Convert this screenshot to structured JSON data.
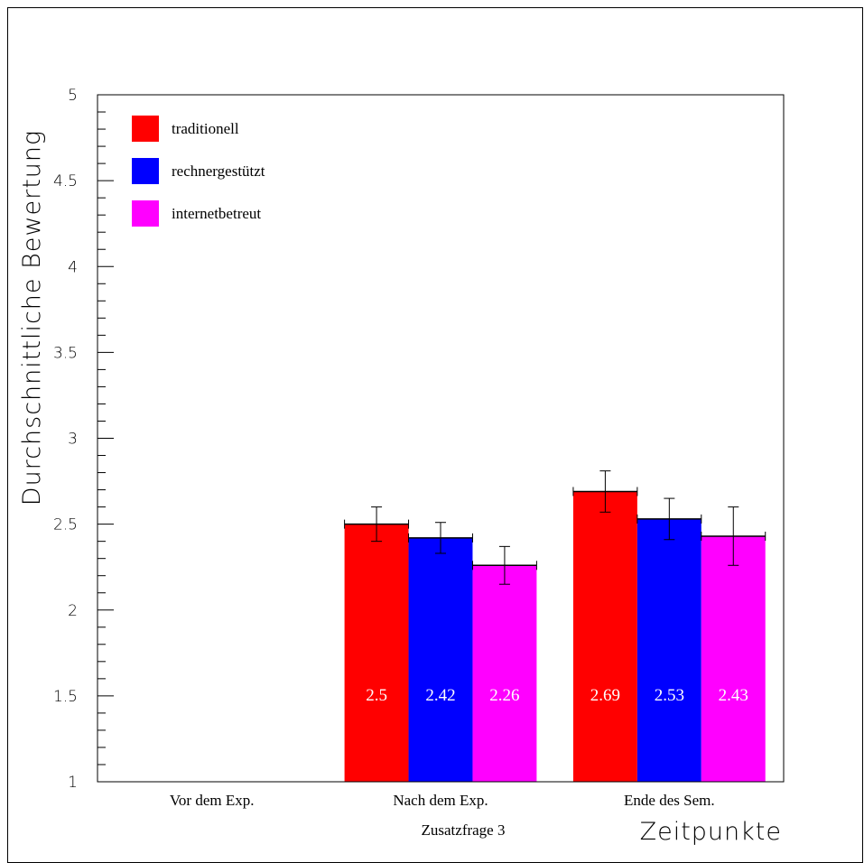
{
  "chart_data": {
    "type": "bar",
    "title": "",
    "subtitle": "Zusatzfrage 3",
    "xlabel": "Zeitpunkte",
    "ylabel": "Durchschnittliche Bewertung",
    "ylim": [
      1,
      5
    ],
    "yticks": [
      "1",
      "1.5",
      "2",
      "2.5",
      "3",
      "3.5",
      "4",
      "4.5",
      "5"
    ],
    "grid": false,
    "legend_position": "top-left",
    "categories": [
      "Vor dem Exp.",
      "Nach dem Exp.",
      "Ende des Sem."
    ],
    "series": [
      {
        "name": "traditionell",
        "color": "#ff0000",
        "values": [
          null,
          2.5,
          2.69
        ],
        "errors": [
          null,
          0.1,
          0.12
        ],
        "labels": [
          "",
          "2.5",
          "2.69"
        ]
      },
      {
        "name": "rechnergestützt",
        "color": "#0000ff",
        "values": [
          null,
          2.42,
          2.53
        ],
        "errors": [
          null,
          0.09,
          0.12
        ],
        "labels": [
          "",
          "2.42",
          "2.53"
        ]
      },
      {
        "name": "internetbetreut",
        "color": "#ff00ff",
        "values": [
          null,
          2.26,
          2.43
        ],
        "errors": [
          null,
          0.11,
          0.17
        ],
        "labels": [
          "",
          "2.26",
          "2.43"
        ]
      }
    ]
  }
}
